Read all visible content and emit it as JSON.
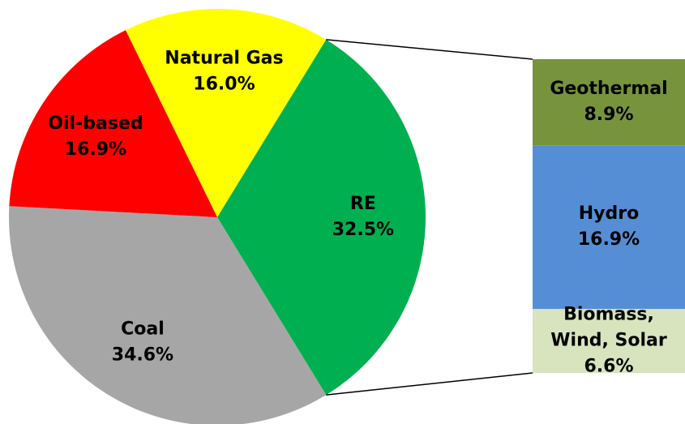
{
  "chart_data": {
    "type": "pie",
    "categories": [
      "Natural Gas",
      "RE",
      "Coal",
      "Oil-based"
    ],
    "values": [
      16,
      32.5,
      34.6,
      16.9
    ],
    "value_labels": [
      "16.0%",
      "32.5%",
      "34.6%",
      "16.9%"
    ],
    "colors": [
      "#ffff00",
      "#00b050",
      "#a6a6a6",
      "#ff0000"
    ],
    "breakdown_of": "RE",
    "breakdown": {
      "type": "bar",
      "categories": [
        "Geothermal",
        "Hydro",
        "Biomass, Wind, Solar"
      ],
      "values": [
        8.9,
        16.9,
        6.6
      ],
      "value_labels": [
        "8.9%",
        "16.9%",
        "6.6%"
      ],
      "colors": [
        "#77933c",
        "#558ed5",
        "#d7e4bd"
      ]
    }
  }
}
